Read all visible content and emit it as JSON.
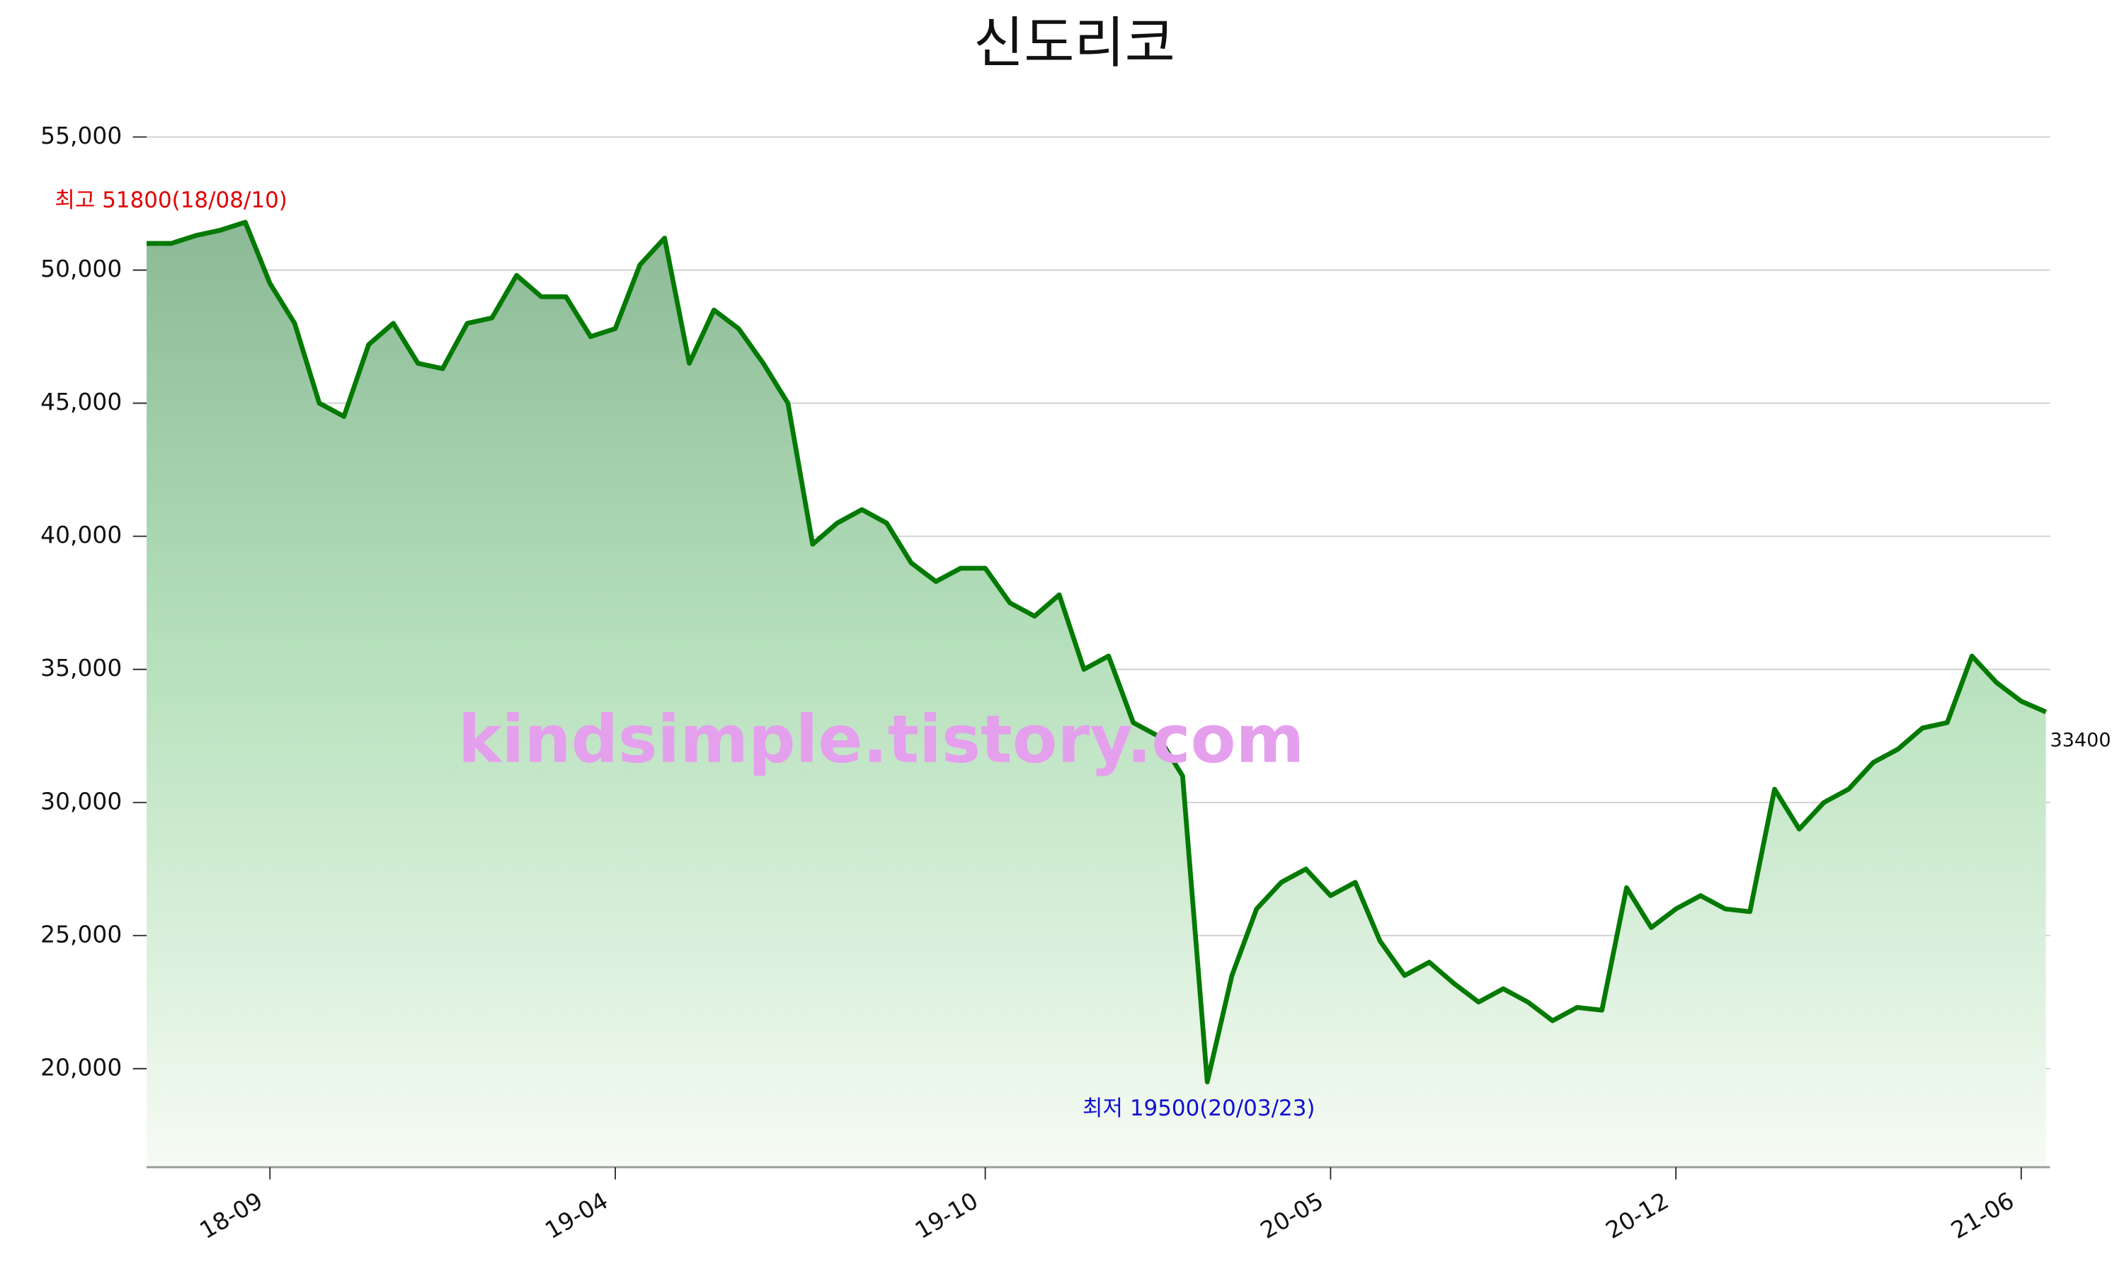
{
  "chart_data": {
    "type": "line",
    "title": "신도리코",
    "x": [
      "18-06",
      "18-07",
      "18-07",
      "18-08",
      "18-08",
      "18-09",
      "18-09",
      "18-10",
      "18-10",
      "18-11",
      "18-11",
      "18-12",
      "18-12",
      "19-01",
      "19-01",
      "19-02",
      "19-02",
      "19-03",
      "19-03",
      "19-04",
      "19-04",
      "19-04",
      "19-05",
      "19-05",
      "19-06",
      "19-06",
      "19-06",
      "19-07",
      "19-07",
      "19-08",
      "19-08",
      "19-09",
      "19-09",
      "19-09",
      "19-10",
      "19-10",
      "19-11",
      "19-11",
      "19-12",
      "19-12",
      "20-01",
      "20-01",
      "20-02",
      "20-03",
      "20-03",
      "20-04",
      "20-04",
      "20-04",
      "20-05",
      "20-05",
      "20-06",
      "20-06",
      "20-07",
      "20-07",
      "20-08",
      "20-08",
      "20-09",
      "20-09",
      "20-10",
      "20-10",
      "20-11",
      "20-11",
      "20-12",
      "20-12",
      "21-01",
      "21-01",
      "21-01",
      "21-02",
      "21-02",
      "21-03",
      "21-03",
      "21-04",
      "21-04",
      "21-04",
      "21-05",
      "21-05",
      "21-06",
      "21-06"
    ],
    "values": [
      51000,
      51000,
      51300,
      51500,
      51800,
      49500,
      48000,
      45000,
      44500,
      47200,
      48000,
      46500,
      46300,
      48000,
      48200,
      49800,
      49000,
      49000,
      47500,
      47800,
      50200,
      51200,
      46500,
      48500,
      47800,
      46500,
      45000,
      39700,
      40500,
      41000,
      40500,
      39000,
      38300,
      38800,
      38800,
      37500,
      37000,
      37800,
      35000,
      35500,
      33000,
      32500,
      31000,
      19500,
      23500,
      26000,
      27000,
      27500,
      26500,
      27000,
      24800,
      23500,
      24000,
      23200,
      22500,
      23000,
      22500,
      21800,
      22300,
      22200,
      26800,
      25300,
      26000,
      26500,
      26000,
      25900,
      30500,
      29000,
      30000,
      30500,
      31500,
      32000,
      32800,
      33000,
      35500,
      34500,
      33800,
      33400
    ],
    "color": "#047a04",
    "ylim": [
      16300,
      55500
    ],
    "yticks": [
      {
        "value": 20000,
        "label": "20,000"
      },
      {
        "value": 25000,
        "label": "25,000"
      },
      {
        "value": 30000,
        "label": "30,000"
      },
      {
        "value": 35000,
        "label": "35,000"
      },
      {
        "value": 40000,
        "label": "40,000"
      },
      {
        "value": 45000,
        "label": "45,000"
      },
      {
        "value": 50000,
        "label": "50,000"
      },
      {
        "value": 55000,
        "label": "55,000"
      }
    ],
    "xticks": [
      "18-09",
      "19-04",
      "19-10",
      "20-05",
      "20-12",
      "21-06"
    ],
    "grid": true,
    "annotations": [
      {
        "text": "최고 51800(18/08/10)",
        "color": "#e00000"
      },
      {
        "text": "최저 19500(20/03/23)",
        "color": "#1010d0"
      }
    ],
    "watermark": "kindsimple.tistory.com"
  }
}
